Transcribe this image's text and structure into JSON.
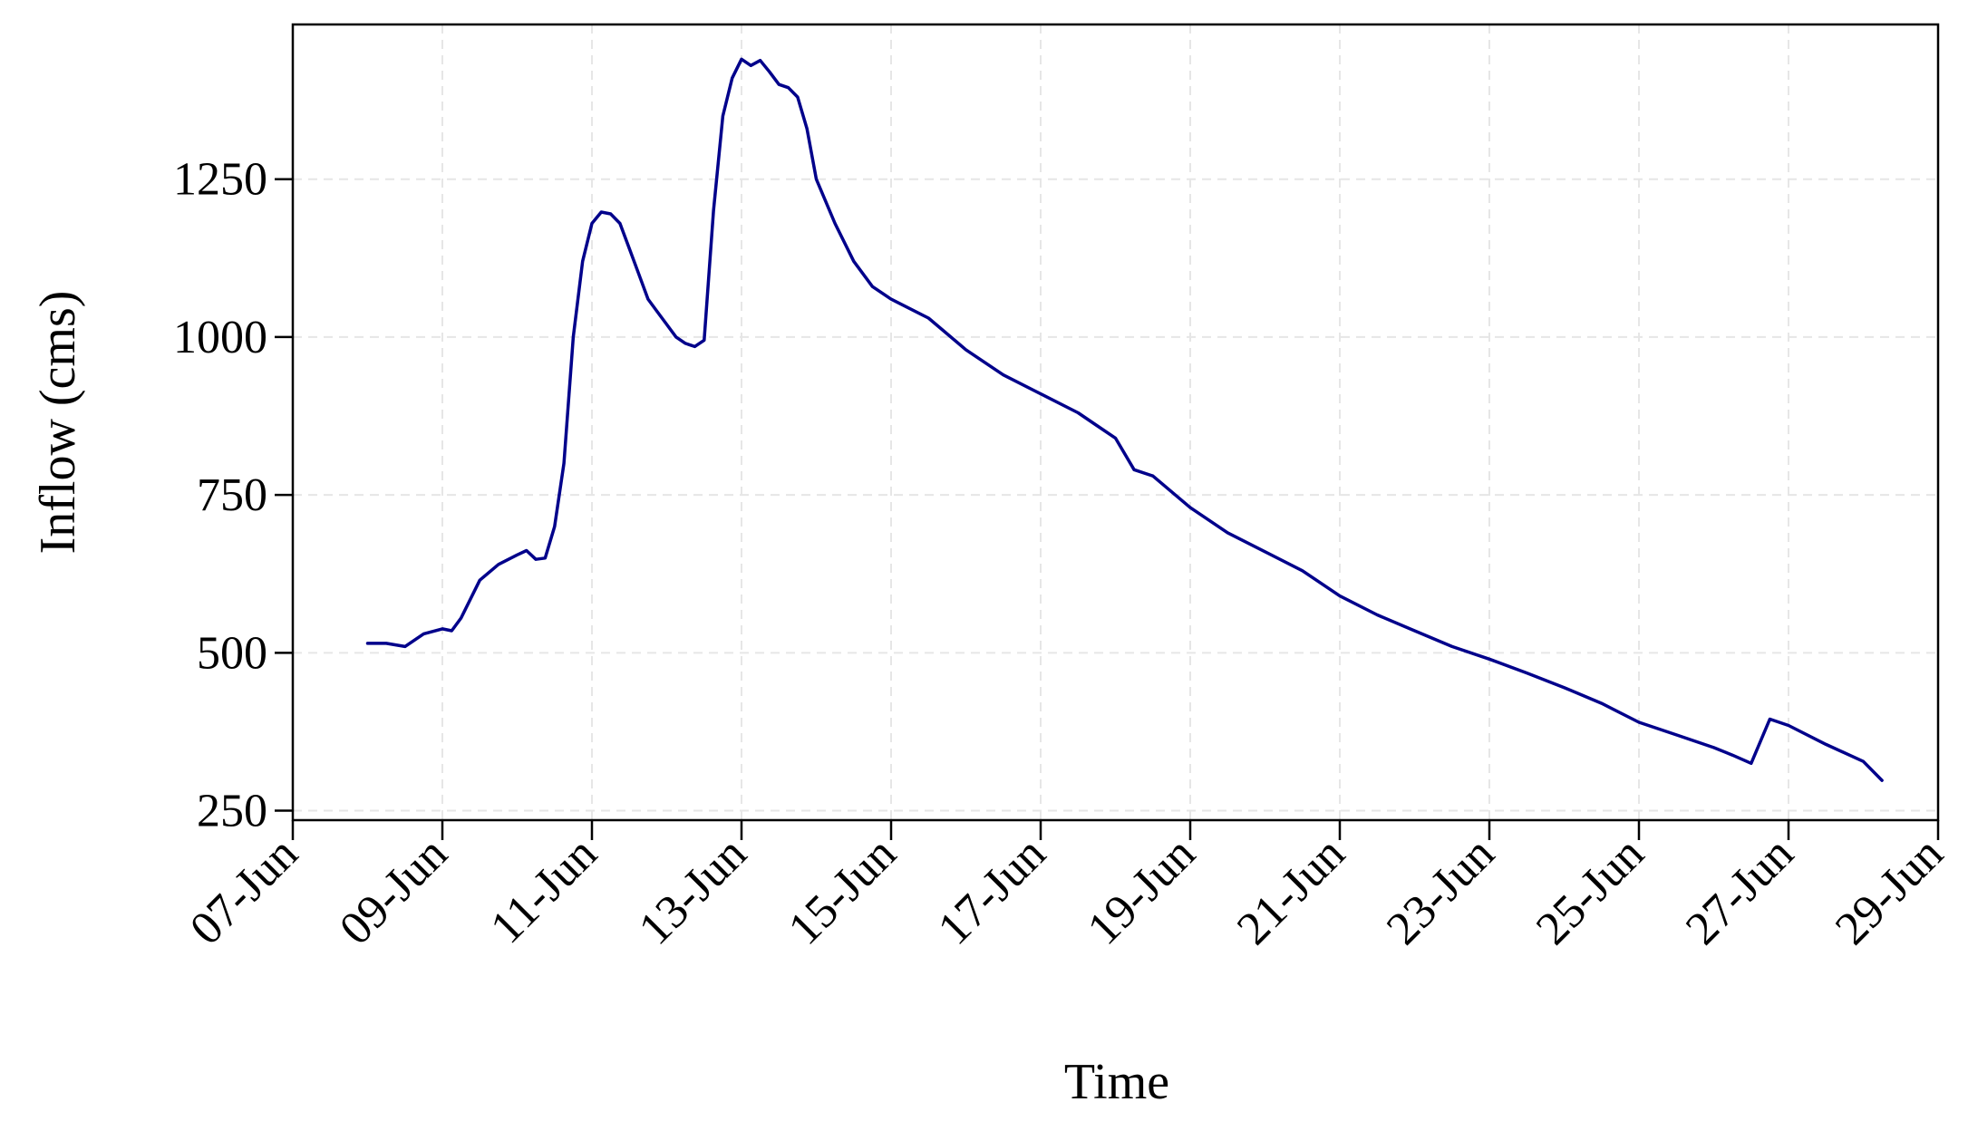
{
  "chart_data": {
    "type": "line",
    "xlabel": "Time",
    "ylabel": "Inflow (cms)",
    "x_ticks": [
      "07-Jun",
      "09-Jun",
      "11-Jun",
      "13-Jun",
      "15-Jun",
      "17-Jun",
      "19-Jun",
      "21-Jun",
      "23-Jun",
      "25-Jun",
      "27-Jun",
      "29-Jun"
    ],
    "y_ticks": [
      250,
      500,
      750,
      1000,
      1250
    ],
    "xlim": [
      "07-Jun 00:00",
      "29-Jun 00:00"
    ],
    "ylim": [
      235,
      1495
    ],
    "grid": true,
    "colors": {
      "line": "#00008b",
      "grid": "#e6e6e6",
      "axis": "#000000"
    },
    "series": [
      {
        "x": [
          "08-Jun 00:00",
          "08-Jun 06:00",
          "08-Jun 12:00",
          "08-Jun 18:00",
          "09-Jun 00:00",
          "09-Jun 03:00",
          "09-Jun 06:00",
          "09-Jun 12:00",
          "09-Jun 18:00",
          "10-Jun 00:00",
          "10-Jun 03:00",
          "10-Jun 06:00",
          "10-Jun 09:00",
          "10-Jun 12:00",
          "10-Jun 15:00",
          "10-Jun 18:00",
          "10-Jun 21:00",
          "11-Jun 00:00",
          "11-Jun 03:00",
          "11-Jun 06:00",
          "11-Jun 09:00",
          "11-Jun 12:00",
          "11-Jun 15:00",
          "11-Jun 18:00",
          "11-Jun 21:00",
          "12-Jun 00:00",
          "12-Jun 03:00",
          "12-Jun 06:00",
          "12-Jun 09:00",
          "12-Jun 12:00",
          "12-Jun 15:00",
          "12-Jun 18:00",
          "12-Jun 21:00",
          "13-Jun 00:00",
          "13-Jun 03:00",
          "13-Jun 06:00",
          "13-Jun 09:00",
          "13-Jun 12:00",
          "13-Jun 15:00",
          "13-Jun 18:00",
          "13-Jun 21:00",
          "14-Jun 00:00",
          "14-Jun 06:00",
          "14-Jun 12:00",
          "14-Jun 18:00",
          "15-Jun 00:00",
          "15-Jun 12:00",
          "16-Jun 00:00",
          "16-Jun 12:00",
          "17-Jun 00:00",
          "17-Jun 12:00",
          "17-Jun 18:00",
          "18-Jun 00:00",
          "18-Jun 06:00",
          "18-Jun 12:00",
          "19-Jun 00:00",
          "19-Jun 12:00",
          "20-Jun 00:00",
          "20-Jun 12:00",
          "21-Jun 00:00",
          "21-Jun 12:00",
          "22-Jun 00:00",
          "22-Jun 12:00",
          "23-Jun 00:00",
          "23-Jun 12:00",
          "24-Jun 00:00",
          "24-Jun 12:00",
          "25-Jun 00:00",
          "25-Jun 12:00",
          "26-Jun 00:00",
          "26-Jun 06:00",
          "26-Jun 12:00",
          "26-Jun 18:00",
          "27-Jun 00:00",
          "27-Jun 12:00",
          "28-Jun 00:00",
          "28-Jun 06:00"
        ],
        "values": [
          515,
          515,
          510,
          530,
          538,
          535,
          555,
          615,
          640,
          655,
          662,
          648,
          650,
          700,
          800,
          1000,
          1120,
          1180,
          1198,
          1195,
          1180,
          1140,
          1100,
          1060,
          1040,
          1020,
          1000,
          990,
          985,
          995,
          1200,
          1350,
          1410,
          1440,
          1430,
          1438,
          1420,
          1400,
          1395,
          1380,
          1330,
          1250,
          1180,
          1120,
          1080,
          1060,
          1030,
          980,
          940,
          910,
          880,
          860,
          840,
          790,
          780,
          730,
          690,
          660,
          630,
          590,
          560,
          535,
          510,
          490,
          468,
          445,
          420,
          390,
          370,
          350,
          338,
          325,
          395,
          385,
          355,
          328,
          298
        ]
      }
    ]
  }
}
